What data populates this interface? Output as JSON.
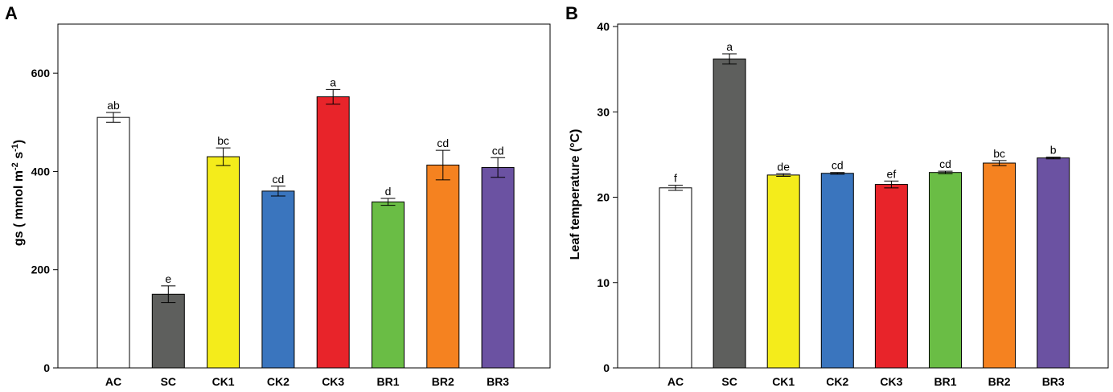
{
  "chart_data": [
    {
      "type": "bar",
      "panel": "A",
      "ylabel_main": "gs ( mmol m",
      "ylabel_sup1": "-2",
      "ylabel_mid": " s",
      "ylabel_sup2": "-1",
      "ylabel_end": ")",
      "xlabel": "",
      "ylim": [
        0,
        700
      ],
      "yticks": [
        0,
        200,
        400,
        600
      ],
      "categories": [
        "AC",
        "SC",
        "CK1",
        "CK2",
        "CK3",
        "BR1",
        "BR2",
        "BR3"
      ],
      "values": [
        510,
        150,
        430,
        360,
        552,
        338,
        413,
        408
      ],
      "errors": [
        10,
        17,
        18,
        10,
        15,
        7,
        30,
        20
      ],
      "letters": [
        "ab",
        "e",
        "bc",
        "cd",
        "a",
        "d",
        "cd",
        "cd"
      ],
      "colors": [
        "#ffffff",
        "#5e5f5d",
        "#f4ec1b",
        "#3a75be",
        "#e8242a",
        "#6abd45",
        "#f58220",
        "#6b52a2"
      ]
    },
    {
      "type": "bar",
      "panel": "B",
      "ylabel": "Leaf temperature (°C)",
      "xlabel": "",
      "ylim": [
        0,
        40
      ],
      "yticks": [
        0,
        10,
        20,
        30,
        40
      ],
      "categories": [
        "AC",
        "SC",
        "CK1",
        "CK2",
        "CK3",
        "BR1",
        "BR2",
        "BR3"
      ],
      "values": [
        21.1,
        36.2,
        22.6,
        22.8,
        21.5,
        22.9,
        24.0,
        24.6
      ],
      "errors": [
        0.3,
        0.6,
        0.15,
        0.1,
        0.4,
        0.15,
        0.3,
        0.1
      ],
      "letters": [
        "f",
        "a",
        "de",
        "cd",
        "ef",
        "cd",
        "bc",
        "b"
      ],
      "colors": [
        "#ffffff",
        "#5e5f5d",
        "#f4ec1b",
        "#3a75be",
        "#e8242a",
        "#6abd45",
        "#f58220",
        "#6b52a2"
      ]
    }
  ]
}
